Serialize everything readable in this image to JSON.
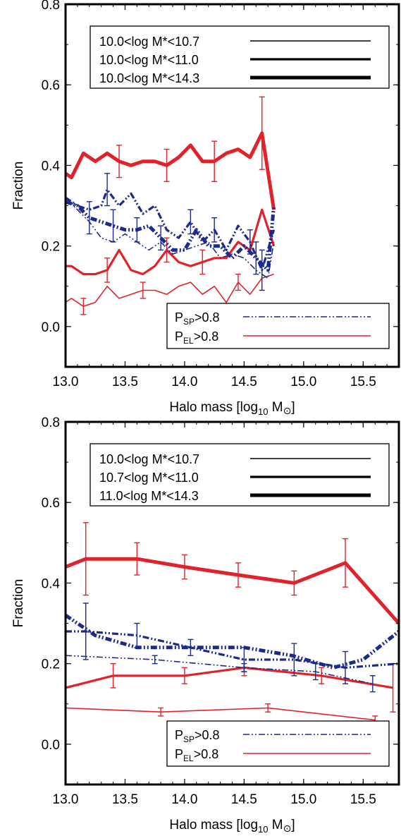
{
  "colors": {
    "sp": "#1c2a8c",
    "el": "#e0232b",
    "axis": "#000000"
  },
  "chart_data": [
    {
      "type": "line",
      "xlabel_main": "Halo mass [log",
      "xlabel_sub": "10",
      "xlabel_unit": " M",
      "xlabel_sym": "⊙",
      "xlabel_close": "]",
      "ylabel": "Fraction",
      "xlim": [
        13.0,
        15.8
      ],
      "ylim": [
        -0.1,
        0.8
      ],
      "xticks": [
        "13.0",
        "13.5",
        "14.0",
        "14.5",
        "15.0",
        "15.5"
      ],
      "yticks": [
        "0.0",
        "0.2",
        "0.4",
        "0.6",
        "0.8"
      ],
      "legend_mass": [
        {
          "label": "10.0<log  M*<10.7",
          "weight": "thin"
        },
        {
          "label": "10.0<log  M*<11.0",
          "weight": "medium"
        },
        {
          "label": "10.0<log  M*<14.3",
          "weight": "thick"
        }
      ],
      "legend_type": [
        {
          "label_main": "P",
          "label_sub": "SP",
          "label_rest": ">0.8",
          "style": "dashdotdot",
          "color": "#1c2a8c"
        },
        {
          "label_main": "P",
          "label_sub": "EL",
          "label_rest": ">0.8",
          "style": "solid",
          "color": "#e0232b"
        }
      ],
      "series": [
        {
          "group": "EL",
          "weight": "thick",
          "x": [
            13.0,
            13.05,
            13.15,
            13.25,
            13.35,
            13.45,
            13.55,
            13.65,
            13.75,
            13.85,
            13.95,
            14.05,
            14.15,
            14.25,
            14.35,
            14.45,
            14.55,
            14.65,
            14.75
          ],
          "y": [
            0.38,
            0.37,
            0.43,
            0.41,
            0.43,
            0.41,
            0.4,
            0.41,
            0.41,
            0.4,
            0.42,
            0.45,
            0.41,
            0.41,
            0.43,
            0.44,
            0.42,
            0.48,
            0.29
          ],
          "err": [
            0,
            0,
            0,
            0,
            0,
            0.04,
            0,
            0,
            0,
            0.04,
            0,
            0,
            0,
            0.05,
            0,
            0,
            0,
            0.09,
            0
          ]
        },
        {
          "group": "EL",
          "weight": "medium",
          "x": [
            13.0,
            13.05,
            13.15,
            13.25,
            13.35,
            13.45,
            13.55,
            13.65,
            13.75,
            13.85,
            13.95,
            14.05,
            14.15,
            14.25,
            14.35,
            14.45,
            14.55,
            14.65,
            14.75
          ],
          "y": [
            0.15,
            0.15,
            0.13,
            0.13,
            0.14,
            0.19,
            0.14,
            0.13,
            0.15,
            0.19,
            0.16,
            0.15,
            0.16,
            0.17,
            0.17,
            0.21,
            0.19,
            0.29,
            0.2
          ],
          "err": [
            0,
            0,
            0,
            0,
            0.03,
            0,
            0,
            0,
            0,
            0.03,
            0,
            0,
            0.03,
            0,
            0,
            0,
            0,
            0,
            0
          ]
        },
        {
          "group": "EL",
          "weight": "thin",
          "x": [
            13.0,
            13.05,
            13.15,
            13.25,
            13.35,
            13.45,
            13.55,
            13.65,
            13.75,
            13.85,
            13.95,
            14.05,
            14.15,
            14.25,
            14.35,
            14.45,
            14.55,
            14.65,
            14.75
          ],
          "y": [
            0.06,
            0.07,
            0.05,
            0.06,
            0.1,
            0.07,
            0.08,
            0.09,
            0.09,
            0.08,
            0.1,
            0.11,
            0.08,
            0.1,
            0.06,
            0.11,
            0.08,
            0.12,
            0.13
          ],
          "err": [
            0,
            0,
            0.02,
            0,
            0,
            0,
            0,
            0.02,
            0,
            0,
            0,
            0,
            0,
            0,
            0,
            0.02,
            0,
            0,
            0
          ]
        },
        {
          "group": "SP",
          "weight": "thick",
          "x": [
            13.0,
            13.1,
            13.2,
            13.3,
            13.4,
            13.5,
            13.6,
            13.7,
            13.8,
            13.9,
            14.0,
            14.1,
            14.2,
            14.3,
            14.4,
            14.5,
            14.6,
            14.7,
            14.75
          ],
          "y": [
            0.31,
            0.3,
            0.27,
            0.26,
            0.25,
            0.24,
            0.24,
            0.25,
            0.22,
            0.19,
            0.19,
            0.24,
            0.2,
            0.2,
            0.17,
            0.2,
            0.17,
            0.14,
            0.3
          ],
          "err": [
            0,
            0,
            0.04,
            0,
            0.04,
            0,
            0.03,
            0,
            0.03,
            0,
            0,
            0,
            0,
            0,
            0,
            0,
            0.04,
            0,
            0
          ]
        },
        {
          "group": "SP",
          "weight": "medium",
          "x": [
            13.0,
            13.1,
            13.2,
            13.3,
            13.35,
            13.45,
            13.55,
            13.65,
            13.75,
            13.85,
            13.95,
            14.05,
            14.15,
            14.25,
            14.35,
            14.45,
            14.55,
            14.65,
            14.75
          ],
          "y": [
            0.32,
            0.3,
            0.29,
            0.3,
            0.34,
            0.3,
            0.33,
            0.28,
            0.3,
            0.24,
            0.22,
            0.26,
            0.21,
            0.24,
            0.19,
            0.25,
            0.21,
            0.14,
            0.24
          ],
          "err": [
            0,
            0,
            0,
            0,
            0.04,
            0,
            0,
            0,
            0,
            0,
            0,
            0.03,
            0,
            0.03,
            0,
            0,
            0.03,
            0.05,
            0
          ]
        },
        {
          "group": "SP",
          "weight": "thin",
          "x": [
            13.0,
            13.1,
            13.2,
            13.3,
            13.4,
            13.5,
            13.6,
            13.7,
            13.8,
            13.9,
            14.0,
            14.1,
            14.2,
            14.3,
            14.4,
            14.5,
            14.6,
            14.7,
            14.75
          ],
          "y": [
            0.32,
            0.29,
            0.26,
            0.22,
            0.21,
            0.23,
            0.21,
            0.19,
            0.21,
            0.18,
            0.19,
            0.2,
            0.21,
            0.17,
            0.18,
            0.17,
            0.14,
            0.12,
            0.21
          ],
          "err": [
            0,
            0,
            0,
            0,
            0,
            0,
            0,
            0,
            0,
            0,
            0,
            0,
            0,
            0,
            0,
            0,
            0,
            0,
            0
          ]
        }
      ]
    },
    {
      "type": "line",
      "xlabel_main": "Halo mass [log",
      "xlabel_sub": "10",
      "xlabel_unit": " M",
      "xlabel_sym": "⊙",
      "xlabel_close": "]",
      "ylabel": "Fraction",
      "xlim": [
        13.0,
        15.8
      ],
      "ylim": [
        -0.1,
        0.8
      ],
      "xticks": [
        "13.0",
        "13.5",
        "14.0",
        "14.5",
        "15.0",
        "15.5"
      ],
      "yticks": [
        "0.0",
        "0.2",
        "0.4",
        "0.6",
        "0.8"
      ],
      "legend_mass": [
        {
          "label": "10.0<log  M*<10.7",
          "weight": "thin"
        },
        {
          "label": "10.7<log  M*<11.0",
          "weight": "medium"
        },
        {
          "label": "11.0<log  M*<14.3",
          "weight": "thick"
        }
      ],
      "legend_type": [
        {
          "label_main": "P",
          "label_sub": "SP",
          "label_rest": ">0.8",
          "style": "dashdotdot",
          "color": "#1c2a8c"
        },
        {
          "label_main": "P",
          "label_sub": "EL",
          "label_rest": ">0.8",
          "style": "solid",
          "color": "#e0232b"
        }
      ],
      "series": [
        {
          "group": "EL",
          "weight": "thick",
          "x": [
            13.0,
            13.17,
            13.6,
            14.0,
            14.45,
            14.92,
            15.35,
            15.8
          ],
          "y": [
            0.44,
            0.46,
            0.46,
            0.44,
            0.42,
            0.4,
            0.45,
            0.3
          ],
          "err": [
            0,
            0.09,
            0.04,
            0.03,
            0.03,
            0.03,
            0.06,
            0
          ]
        },
        {
          "group": "EL",
          "weight": "medium",
          "x": [
            13.0,
            13.4,
            14.0,
            14.5,
            15.15,
            15.75
          ],
          "y": [
            0.14,
            0.17,
            0.17,
            0.19,
            0.17,
            0.14
          ],
          "err": [
            0,
            0.03,
            0.02,
            0.02,
            0.02,
            0.06
          ]
        },
        {
          "group": "EL",
          "weight": "thin",
          "x": [
            13.0,
            13.8,
            14.7,
            15.6
          ],
          "y": [
            0.09,
            0.08,
            0.09,
            0.06
          ],
          "err": [
            0,
            0.01,
            0.01,
            0.01
          ]
        },
        {
          "group": "SP",
          "weight": "thick",
          "x": [
            13.0,
            13.25,
            13.6,
            14.0,
            14.5,
            14.9,
            15.25,
            15.5,
            15.8
          ],
          "y": [
            0.32,
            0.27,
            0.24,
            0.24,
            0.24,
            0.22,
            0.19,
            0.21,
            0.28
          ],
          "err": [
            0,
            0,
            0,
            0,
            0,
            0,
            0,
            0,
            0
          ]
        },
        {
          "group": "SP",
          "weight": "medium",
          "x": [
            13.0,
            13.17,
            13.6,
            14.05,
            14.5,
            14.92,
            15.35,
            15.8
          ],
          "y": [
            0.28,
            0.28,
            0.27,
            0.24,
            0.21,
            0.21,
            0.19,
            0.2
          ],
          "err": [
            0,
            0.07,
            0.03,
            0.02,
            0.03,
            0.04,
            0.04,
            0
          ]
        },
        {
          "group": "SP",
          "weight": "thin",
          "x": [
            13.0,
            13.75,
            14.5,
            15.1,
            15.58
          ],
          "y": [
            0.22,
            0.21,
            0.19,
            0.18,
            0.15
          ],
          "err": [
            0,
            0.01,
            0.01,
            0.02,
            0.02
          ]
        }
      ]
    }
  ]
}
